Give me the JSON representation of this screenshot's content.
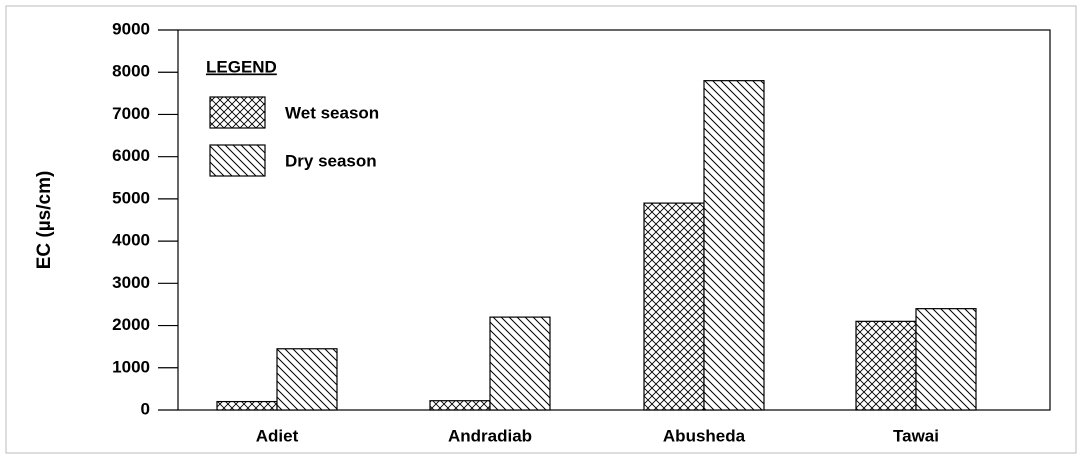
{
  "chart_data": {
    "type": "bar",
    "y_label": "EC (µs/cm)",
    "legend_title": "LEGEND",
    "categories": [
      "Adiet",
      "Andradiab",
      "Abusheda",
      "Tawai"
    ],
    "series": [
      {
        "name": "Wet season",
        "color": "#000000",
        "hatch": "crosshatch",
        "values": [
          200,
          220,
          4900,
          2100
        ]
      },
      {
        "name": "Dry season",
        "color": "#000000",
        "hatch": "diagonal",
        "values": [
          1450,
          2200,
          7800,
          2400
        ]
      }
    ],
    "ylim": [
      0,
      9000
    ],
    "yticks": [
      0,
      1000,
      2000,
      3000,
      4000,
      5000,
      6000,
      7000,
      8000,
      9000
    ],
    "legend": "upper left"
  }
}
